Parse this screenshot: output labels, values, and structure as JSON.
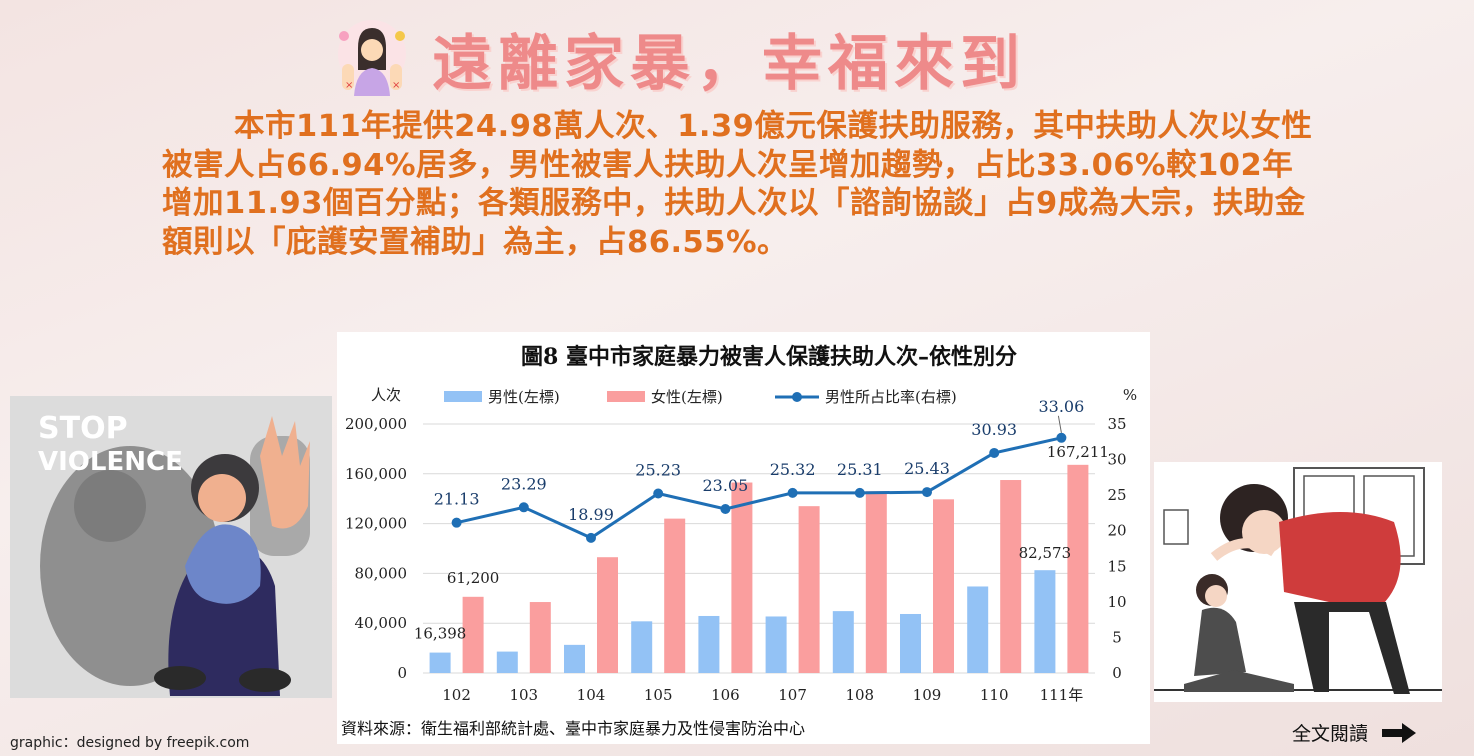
{
  "title": "遠離家暴，幸福來到",
  "paragraph": "本市111年提供24.98萬人次、1.39億元保護扶助服務，其中扶助人次以女性被害人占66.94%居多，男性被害人扶助人次呈增加趨勢，占比33.06%較102年增加11.93個百分點；各類服務中，扶助人次以「諮詢協談」占9成為大宗，扶助金額則以「庇護安置補助」為主，占86.55%。",
  "credit": "graphic：designed by freepik.com",
  "read_all": "全文閱讀",
  "illustration_left": {
    "line1": "STOP",
    "line2": "VIOLENCE"
  },
  "colors": {
    "title": "#ee8a8a",
    "text": "#e0701f",
    "male": "#93c2f5",
    "female": "#fa9e9e",
    "ratio": "#1f6fb5"
  },
  "chart_data": {
    "type": "bar",
    "title": "圖8  臺中市家庭暴力被害人保護扶助人次–依性別分",
    "ylabel_left": "人次",
    "ylabel_right": "%",
    "categories": [
      "102",
      "103",
      "104",
      "105",
      "106",
      "107",
      "108",
      "109",
      "110",
      "111年"
    ],
    "series": [
      {
        "name": "男性(左標)",
        "type": "bar",
        "axis": "left",
        "values": [
          16398,
          17200,
          22600,
          41500,
          45800,
          45400,
          49700,
          47400,
          69500,
          82573
        ]
      },
      {
        "name": "女性(左標)",
        "type": "bar",
        "axis": "left",
        "values": [
          61200,
          57000,
          93000,
          124000,
          153000,
          134000,
          146000,
          139500,
          155000,
          167211
        ]
      },
      {
        "name": "男性所占比率(右標)",
        "type": "line",
        "axis": "right",
        "values": [
          21.13,
          23.29,
          18.99,
          25.23,
          23.05,
          25.32,
          25.31,
          25.43,
          30.93,
          33.06
        ]
      }
    ],
    "bar_labels": [
      {
        "series": 0,
        "index": 0,
        "text": "16,398"
      },
      {
        "series": 1,
        "index": 0,
        "text": "61,200"
      },
      {
        "series": 0,
        "index": 9,
        "text": "82,573"
      },
      {
        "series": 1,
        "index": 9,
        "text": "167,211"
      }
    ],
    "line_labels": [
      "21.13",
      "23.29",
      "18.99",
      "25.23",
      "23.05",
      "25.32",
      "25.31",
      "25.43",
      "30.93",
      "33.06"
    ],
    "left_ticks": [
      "0",
      "40,000",
      "80,000",
      "120,000",
      "160,000",
      "200,000"
    ],
    "right_ticks": [
      "0",
      "5",
      "10",
      "15",
      "20",
      "25",
      "30",
      "35"
    ],
    "ylim_left": [
      0,
      200000
    ],
    "ylim_right": [
      0,
      35
    ],
    "legend_position": "top",
    "grid": "horizontal",
    "source": "資料來源：衛生福利部統計處、臺中市家庭暴力及性侵害防治中心"
  }
}
